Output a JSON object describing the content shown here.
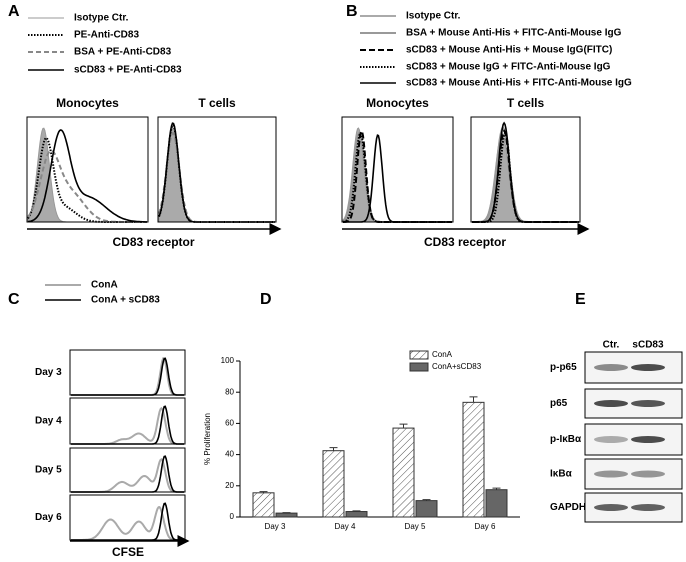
{
  "panel_a": {
    "label": "A",
    "legend": [
      "Isotype Ctr.",
      "PE-Anti-CD83",
      "BSA + PE-Anti-CD83",
      "sCD83 + PE-Anti-CD83"
    ],
    "subtitles": [
      "Monocytes",
      "T cells"
    ],
    "xlabel": "CD83 receptor"
  },
  "panel_b": {
    "label": "B",
    "legend": [
      "Isotype Ctr.",
      "BSA + Mouse Anti-His + FITC-Anti-Mouse IgG",
      "sCD83 + Mouse Anti-His + Mouse IgG(FITC)",
      "sCD83 + Mouse IgG + FITC-Anti-Mouse IgG",
      "sCD83 + Mouse Anti-His + FITC-Anti-Mouse IgG"
    ],
    "subtitles": [
      "Monocytes",
      "T cells"
    ],
    "xlabel": "CD83 receptor"
  },
  "panel_c": {
    "label": "C",
    "legend": [
      "ConA",
      "ConA + sCD83"
    ],
    "rows": [
      "Day 3",
      "Day 4",
      "Day 5",
      "Day 6"
    ],
    "xlabel": "CFSE"
  },
  "chart_data": {
    "label": "D",
    "type": "bar",
    "ylabel": "% Proliferation",
    "categories": [
      "Day 3",
      "Day 4",
      "Day 5",
      "Day 6"
    ],
    "series": [
      {
        "name": "ConA",
        "color": "#ffffff",
        "values": [
          15.5,
          42.5,
          57,
          73.5
        ],
        "errors": [
          0.8,
          2,
          2.5,
          3.5
        ]
      },
      {
        "name": "ConA+sCD83",
        "color": "#666666",
        "values": [
          2.5,
          3.5,
          10.5,
          17.5
        ],
        "errors": [
          0.3,
          0.4,
          0.6,
          1
        ]
      }
    ],
    "ylim": [
      0,
      100
    ],
    "yticks": [
      0,
      20,
      40,
      60,
      80,
      100
    ]
  },
  "panel_e": {
    "label": "E",
    "lanes": [
      "Ctr.",
      "sCD83"
    ],
    "rows": [
      "p-p65",
      "p65",
      "p-IκBα",
      "IκBα",
      "GAPDH"
    ]
  }
}
